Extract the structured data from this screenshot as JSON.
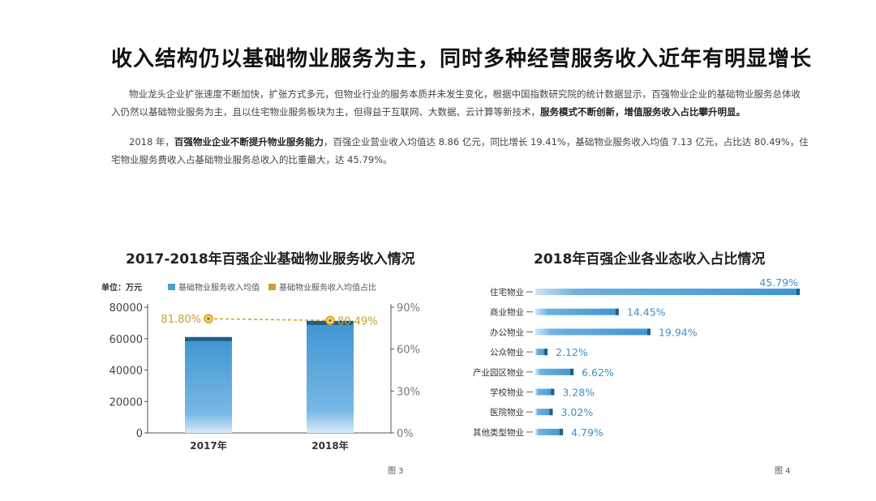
{
  "title": "收入结构仍以基础物业服务为主，同时多种经营服务收入近年有明显增长",
  "paragraph1": {
    "t1": "物业龙头企业扩张速度不断加快，扩张方式多元，但物业行业的服务本质并未发生变化，根据中国指数研究院的统计数据显示，百强物业企业的基础物业服务总体收入仍然以基础物业服务为主，且以住宅物业服务板块为主，但得益于互联网、大数据、云计算等新技术，",
    "b1": "服务模式不断创新，增值服务收入占比攀升明显。"
  },
  "paragraph2": {
    "t1": "2018 年，",
    "b1": "百强物业企业不断提升物业服务能力",
    "t2": "，百强企业营业收入均值达 8.86 亿元，同比增长 19.41%，基础物业服务收入均值 7.13 亿元，占比达 80.49%，住宅物业服务费收入占基础物业服务总收入的比重最大，达 45.79%。"
  },
  "chart_data": [
    {
      "type": "bar",
      "title": "2017-2018年百强企业基础物业服务收入情况",
      "unit_label": "单位：万元",
      "categories": [
        "2017年",
        "2018年"
      ],
      "series": [
        {
          "name": "基础物业服务收入均值",
          "type": "bar",
          "axis": "left",
          "values": [
            61000,
            71300
          ],
          "color": "#4a9fd8"
        },
        {
          "name": "基础物业服务收入均值占比",
          "type": "line",
          "axis": "right",
          "values": [
            81.8,
            80.49
          ],
          "labels": [
            "81.80%",
            "80.49%"
          ],
          "color": "#c9a227"
        }
      ],
      "y_left": {
        "min": 0,
        "max": 80000,
        "ticks": [
          "0",
          "20000",
          "40000",
          "60000",
          "80000"
        ]
      },
      "y_right": {
        "min": 0,
        "max": 90,
        "ticks": [
          "0%",
          "30%",
          "60%",
          "90%"
        ]
      },
      "figure_label": "图 3"
    },
    {
      "type": "bar",
      "orientation": "horizontal",
      "title": "2018年百强企业各业态收入占比情况",
      "categories": [
        "住宅物业",
        "商业物业",
        "办公物业",
        "公众物业",
        "产业园区物业",
        "学校物业",
        "医院物业",
        "其他类型物业"
      ],
      "values": [
        45.79,
        14.45,
        19.94,
        2.12,
        6.62,
        3.28,
        3.02,
        4.79
      ],
      "labels": [
        "45.79%",
        "14.45%",
        "19.94%",
        "2.12%",
        "6.62%",
        "3.28%",
        "3.02%",
        "4.79%"
      ],
      "xlim": [
        0,
        45.79
      ],
      "color": "#4a9fd8",
      "figure_label": "图 4"
    }
  ]
}
